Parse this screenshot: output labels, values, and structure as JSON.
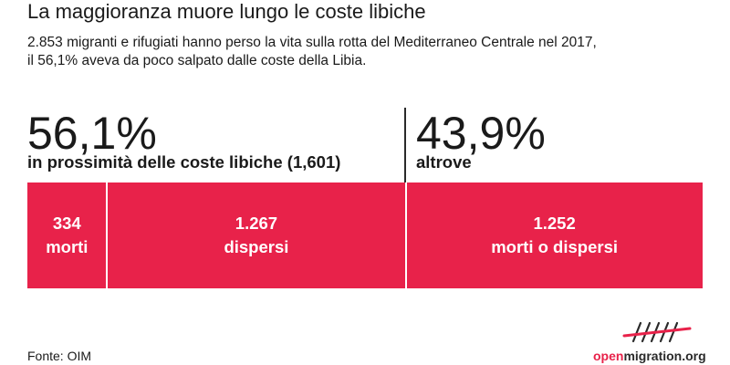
{
  "title": "La maggioranza muore lungo le coste libiche",
  "subtitle_line1": "2.853 migranti e rifugiati hanno perso la vita sulla rotta del Mediterraneo Centrale nel 2017,",
  "subtitle_line2": "il 56,1% aveva da poco salpato dalle coste della Libia.",
  "left_group": {
    "percent_label": "56,1%",
    "label": "in prossimità delle coste libiche (1,601)"
  },
  "right_group": {
    "percent_label": "43,9%",
    "label": "altrove"
  },
  "source": "Fonte: OIM",
  "logo": {
    "text_accent": "open",
    "text_rest": "migration.org"
  },
  "colors": {
    "bar": "#e8224a",
    "text": "#1a1a1a",
    "bar_text": "#ffffff"
  },
  "chart_data": {
    "type": "bar",
    "orientation": "horizontal-stacked",
    "title": "La maggioranza muore lungo le coste libiche",
    "categories": [
      "334 morti",
      "1.267 dispersi",
      "1.252 morti o dispersi"
    ],
    "values": [
      334,
      1267,
      1252
    ],
    "segments": [
      {
        "value_label": "334",
        "label": "morti",
        "value": 334
      },
      {
        "value_label": "1.267",
        "label": "dispersi",
        "value": 1267
      },
      {
        "value_label": "1.252",
        "label": "morti o dispersi",
        "value": 1252
      }
    ],
    "groups": [
      {
        "name": "in prossimità delle coste libiche (1,601)",
        "percent": 56.1
      },
      {
        "name": "altrove",
        "percent": 43.9
      }
    ],
    "total": 2853
  }
}
